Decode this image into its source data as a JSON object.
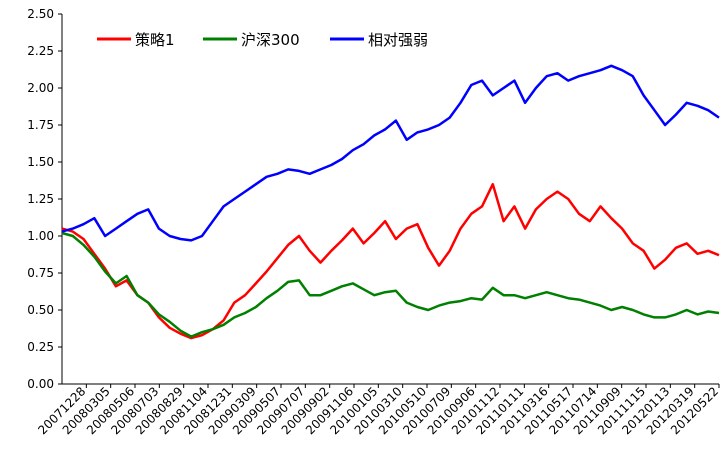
{
  "chart_data": {
    "type": "line",
    "title": "",
    "xlabel": "",
    "ylabel": "",
    "ylim": [
      0,
      2.5
    ],
    "yticks": [
      "0.00",
      "0.25",
      "0.50",
      "0.75",
      "1.00",
      "1.25",
      "1.50",
      "1.75",
      "2.00",
      "2.25",
      "2.50"
    ],
    "x_tick_labels": [
      "20071228",
      "20080305",
      "20080506",
      "20080703",
      "20080829",
      "20081104",
      "20081231",
      "20090309",
      "20090507",
      "20090707",
      "20090902",
      "20091106",
      "20100105",
      "20100310",
      "20100510",
      "20100709",
      "20100906",
      "20101112",
      "20110111",
      "20110316",
      "20110517",
      "20110714",
      "20110909",
      "20111115",
      "20120113",
      "20120319",
      "20120522"
    ],
    "legend_position": "top-left",
    "grid": false,
    "series": [
      {
        "name": "策略1",
        "color": "#ff0000",
        "values": [
          1.05,
          1.03,
          0.98,
          0.88,
          0.78,
          0.66,
          0.7,
          0.6,
          0.55,
          0.45,
          0.38,
          0.34,
          0.31,
          0.33,
          0.37,
          0.43,
          0.55,
          0.6,
          0.68,
          0.76,
          0.85,
          0.94,
          1.0,
          0.9,
          0.82,
          0.9,
          0.97,
          1.05,
          0.95,
          1.02,
          1.1,
          0.98,
          1.05,
          1.08,
          0.92,
          0.8,
          0.9,
          1.05,
          1.15,
          1.2,
          1.35,
          1.1,
          1.2,
          1.05,
          1.18,
          1.25,
          1.3,
          1.25,
          1.15,
          1.1,
          1.2,
          1.12,
          1.05,
          0.95,
          0.9,
          0.78,
          0.84,
          0.92,
          0.95,
          0.88,
          0.9,
          0.87
        ]
      },
      {
        "name": "沪深300",
        "color": "#008000",
        "values": [
          1.02,
          1.0,
          0.94,
          0.86,
          0.76,
          0.68,
          0.73,
          0.6,
          0.55,
          0.47,
          0.42,
          0.36,
          0.32,
          0.35,
          0.37,
          0.4,
          0.45,
          0.48,
          0.52,
          0.58,
          0.63,
          0.69,
          0.7,
          0.6,
          0.6,
          0.63,
          0.66,
          0.68,
          0.64,
          0.6,
          0.62,
          0.63,
          0.55,
          0.52,
          0.5,
          0.53,
          0.55,
          0.56,
          0.58,
          0.57,
          0.65,
          0.6,
          0.6,
          0.58,
          0.6,
          0.62,
          0.6,
          0.58,
          0.57,
          0.55,
          0.53,
          0.5,
          0.52,
          0.5,
          0.47,
          0.45,
          0.45,
          0.47,
          0.5,
          0.47,
          0.49,
          0.48
        ]
      },
      {
        "name": "相对强弱",
        "color": "#0000ff",
        "values": [
          1.03,
          1.05,
          1.08,
          1.12,
          1.0,
          1.05,
          1.1,
          1.15,
          1.18,
          1.05,
          1.0,
          0.98,
          0.97,
          1.0,
          1.1,
          1.2,
          1.25,
          1.3,
          1.35,
          1.4,
          1.42,
          1.45,
          1.44,
          1.42,
          1.45,
          1.48,
          1.52,
          1.58,
          1.62,
          1.68,
          1.72,
          1.78,
          1.65,
          1.7,
          1.72,
          1.75,
          1.8,
          1.9,
          2.02,
          2.05,
          1.95,
          2.0,
          2.05,
          1.9,
          2.0,
          2.08,
          2.1,
          2.05,
          2.08,
          2.1,
          2.12,
          2.15,
          2.12,
          2.08,
          1.95,
          1.85,
          1.75,
          1.82,
          1.9,
          1.88,
          1.85,
          1.8
        ]
      }
    ]
  }
}
